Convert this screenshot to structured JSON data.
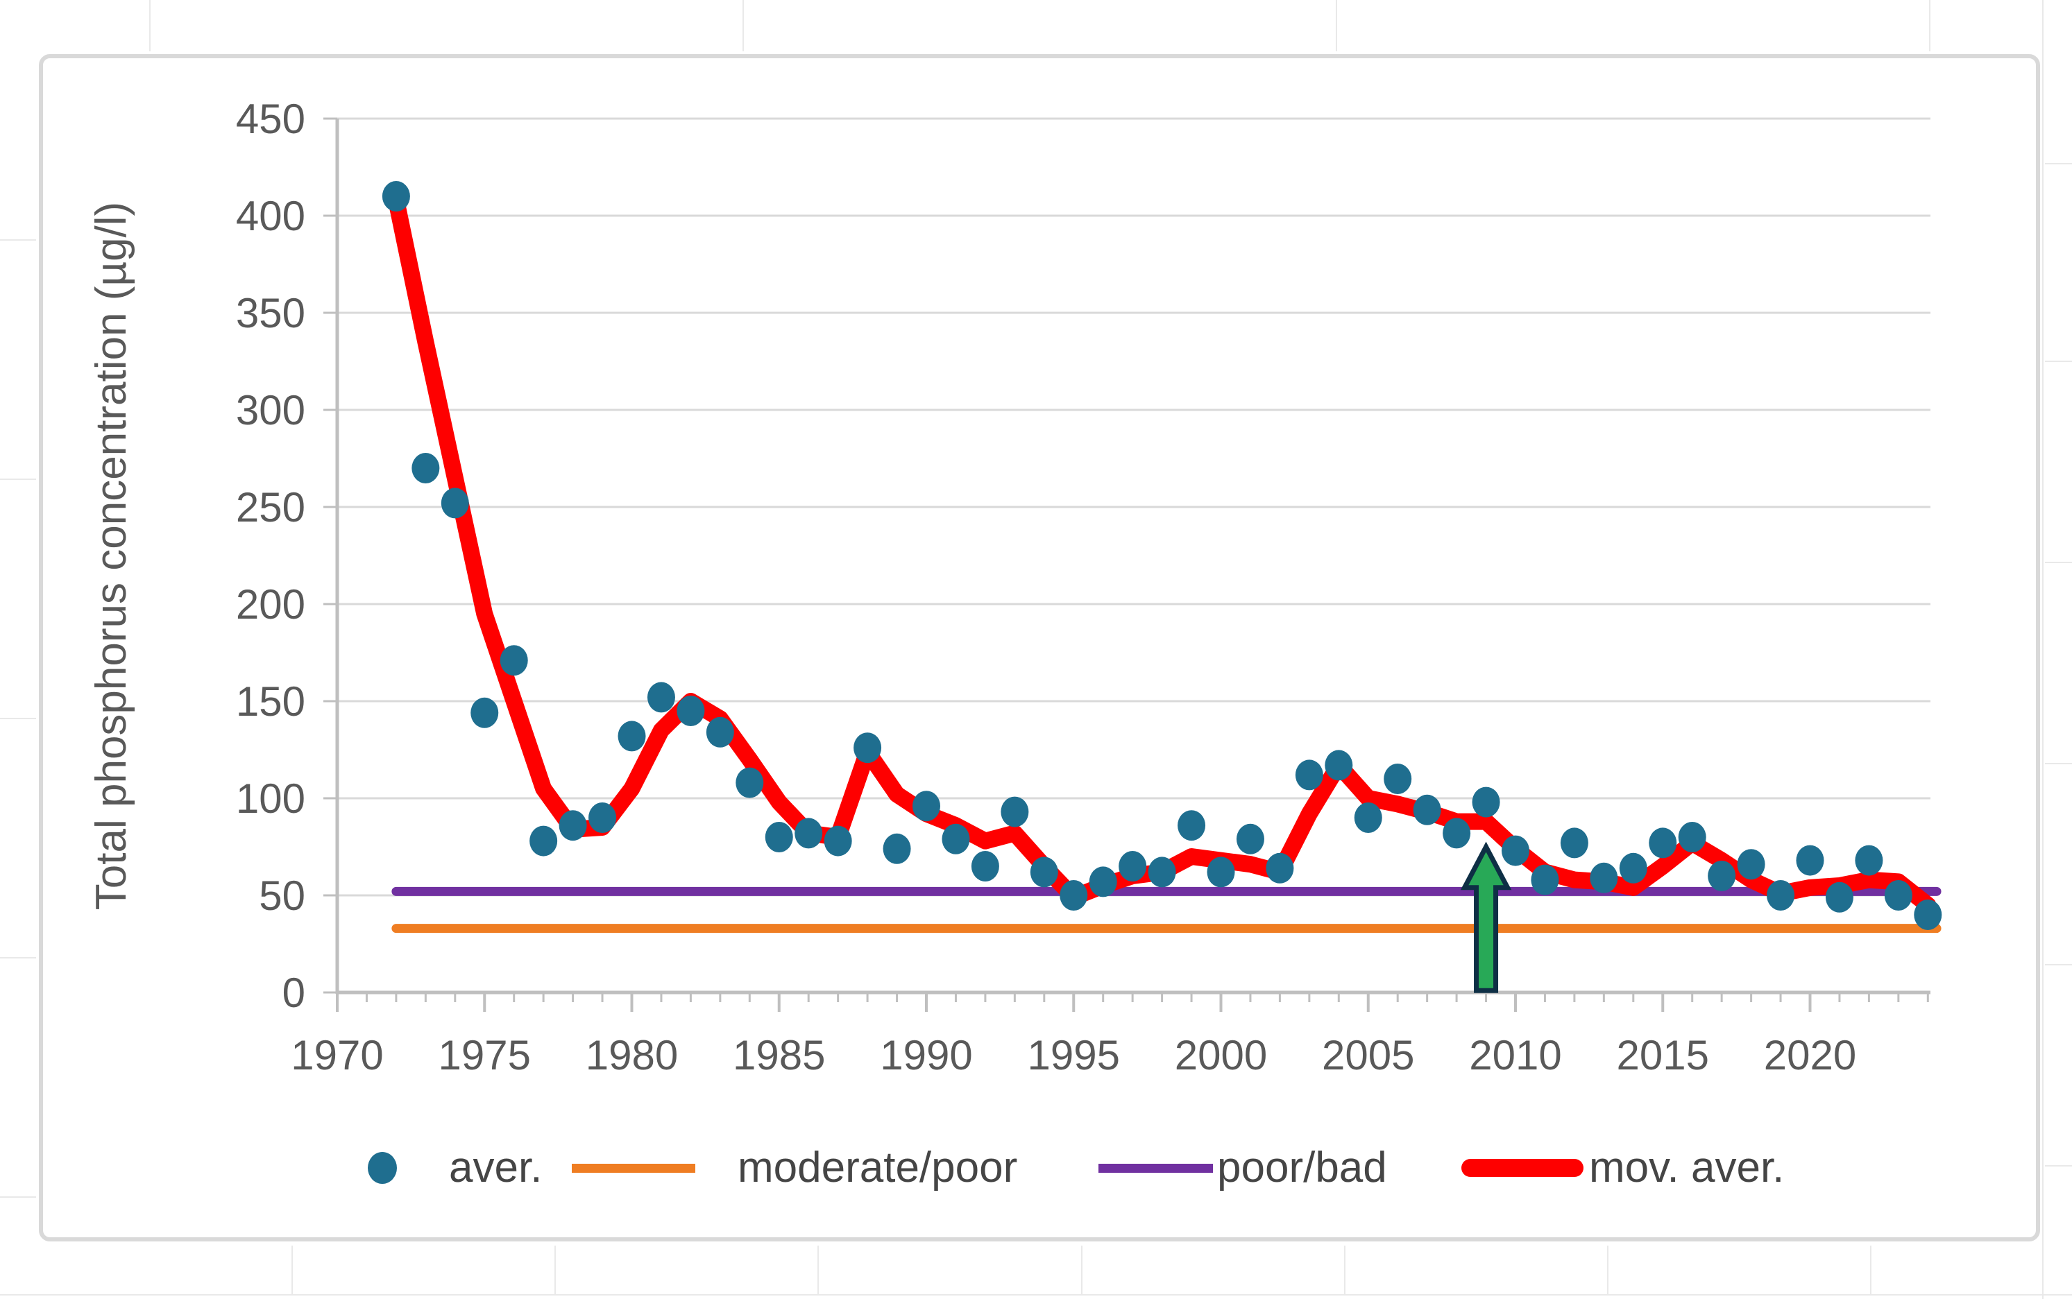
{
  "chart_data": {
    "type": "scatter",
    "title": "",
    "xlabel": "",
    "ylabel": "Total phosphorus concentration (µg/l)",
    "xlim": [
      1970,
      2024.3
    ],
    "ylim": [
      0,
      450
    ],
    "x_ticks": [
      1970,
      1975,
      1980,
      1985,
      1990,
      1995,
      2000,
      2005,
      2010,
      2015,
      2020
    ],
    "y_ticks": [
      0,
      50,
      100,
      150,
      200,
      250,
      300,
      350,
      400,
      450
    ],
    "grid": true,
    "years": [
      1972,
      1973,
      1974,
      1975,
      1976,
      1977,
      1978,
      1979,
      1980,
      1981,
      1982,
      1983,
      1984,
      1985,
      1986,
      1987,
      1988,
      1989,
      1990,
      1991,
      1992,
      1993,
      1994,
      1995,
      1996,
      1997,
      1998,
      1999,
      2000,
      2001,
      2002,
      2003,
      2004,
      2005,
      2006,
      2007,
      2008,
      2009,
      2010,
      2011,
      2012,
      2013,
      2014,
      2015,
      2016,
      2017,
      2018,
      2019,
      2020,
      2021,
      2022,
      2023,
      2024
    ],
    "series": [
      {
        "name": "aver.",
        "type": "scatter",
        "color": "#1f6e8f",
        "values": [
          410,
          270,
          252,
          144,
          171,
          78,
          86,
          90,
          132,
          152,
          145,
          134,
          108,
          80,
          82,
          78,
          126,
          74,
          96,
          79,
          65,
          93,
          62,
          50,
          57,
          65,
          62,
          86,
          62,
          79,
          64,
          112,
          117,
          90,
          110,
          94,
          82,
          98,
          73,
          58,
          77,
          59,
          64,
          77,
          80,
          60,
          66,
          50,
          68,
          49,
          68,
          50,
          40
        ]
      },
      {
        "name": "moderate/poor",
        "type": "threshold",
        "color": "#ef7d22",
        "value": 33,
        "start_year": 1972,
        "end_year": 2024.3
      },
      {
        "name": "poor/bad",
        "type": "threshold",
        "color": "#7030a0",
        "value": 52,
        "start_year": 1972,
        "end_year": 2024.3
      },
      {
        "name": "mov. aver.",
        "type": "line",
        "color": "#fe0000",
        "values": [
          408,
          335,
          265,
          195,
          150,
          105,
          84,
          85,
          105,
          135,
          150,
          141,
          120,
          98,
          82,
          80,
          124,
          102,
          92,
          86,
          78,
          82,
          65,
          49,
          55,
          60,
          62,
          70,
          68,
          66,
          62,
          92,
          117,
          100,
          97,
          93,
          88,
          88,
          74,
          62,
          58,
          57,
          54,
          65,
          77,
          68,
          58,
          51,
          54,
          55,
          58,
          57,
          45
        ]
      }
    ],
    "annotation": {
      "type": "up-arrow",
      "year": 2009,
      "base_value": 1,
      "head_base_value": 54,
      "tip_value": 75,
      "fill": "#28a957",
      "stroke": "#0e2f45"
    },
    "legend_position": "bottom"
  },
  "legend": {
    "items": [
      {
        "label": "aver.",
        "swatch": "dot",
        "color": "#1f6e8f"
      },
      {
        "label": "moderate/poor",
        "swatch": "line",
        "color": "#ef7d22"
      },
      {
        "label": "poor/bad",
        "swatch": "line",
        "color": "#7030a0"
      },
      {
        "label": "mov. aver.",
        "swatch": "thickline",
        "color": "#fe0000"
      }
    ]
  },
  "colors": {
    "gridline": "#d9d9d9",
    "axis": "#bfbfbf",
    "tick_label": "#595959",
    "legend_text": "#454545",
    "chart_border": "#d9d9d9",
    "sheet_cell_line": "#e9e9e9"
  }
}
